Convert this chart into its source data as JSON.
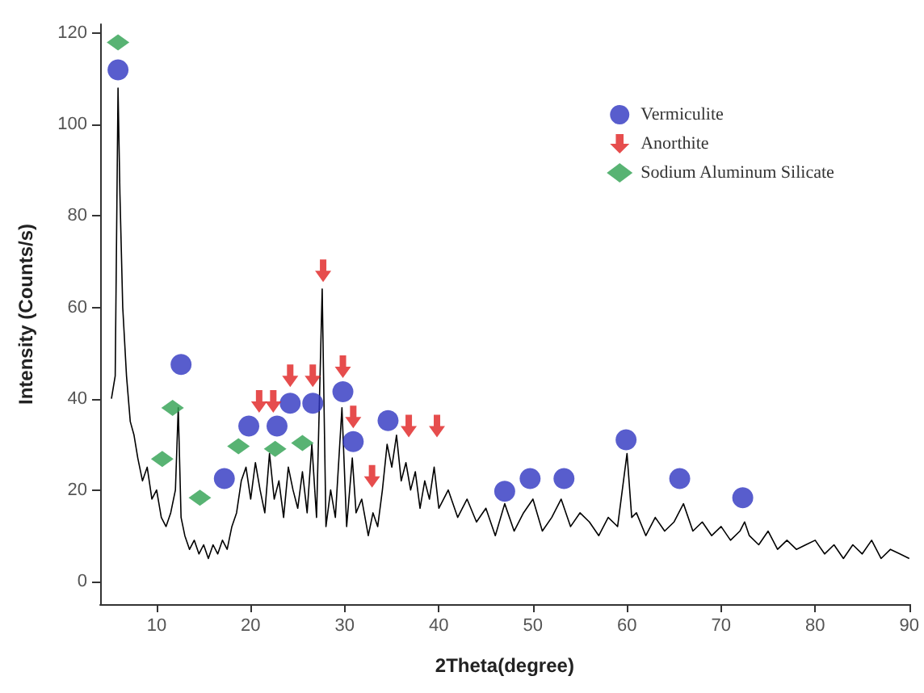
{
  "chart_data": {
    "type": "line",
    "xlabel": "2Theta(degree)",
    "ylabel": "Intensity (Counts/s)",
    "xlim": [
      4,
      90
    ],
    "xticks": [
      10,
      20,
      30,
      40,
      50,
      60,
      70,
      80,
      90
    ],
    "ylim": [
      -5,
      122
    ],
    "yticks": [
      0,
      20,
      40,
      60,
      80,
      100,
      120
    ],
    "grid": false,
    "legend": "top right",
    "series": [
      {
        "color": "#000000",
        "marker": "none",
        "line_style": "solid",
        "x": [
          5.2,
          5.6,
          5.9,
          6.1,
          6.4,
          6.8,
          7.2,
          7.6,
          8.0,
          8.5,
          9.0,
          9.5,
          10.0,
          10.5,
          11.0,
          11.5,
          12.0,
          12.3,
          12.6,
          13.0,
          13.5,
          14.0,
          14.5,
          15.0,
          15.5,
          16.0,
          16.5,
          17.0,
          17.5,
          18.0,
          18.5,
          19.0,
          19.5,
          20.0,
          20.5,
          21.0,
          21.5,
          22.0,
          22.5,
          23.0,
          23.5,
          24.0,
          24.5,
          25.0,
          25.5,
          26.0,
          26.5,
          27.0,
          27.6,
          28.0,
          28.5,
          29.0,
          29.7,
          30.2,
          30.8,
          31.2,
          31.8,
          32.5,
          33.0,
          33.5,
          34.0,
          34.5,
          35.0,
          35.5,
          36.0,
          36.5,
          37.0,
          37.5,
          38.0,
          38.5,
          39.0,
          39.5,
          40.0,
          41.0,
          42.0,
          43.0,
          44.0,
          45.0,
          46.0,
          47.0,
          48.0,
          49.0,
          50.0,
          51.0,
          52.0,
          53.0,
          54.0,
          55.0,
          56.0,
          57.0,
          58.0,
          59.0,
          60.0,
          60.5,
          61.0,
          62.0,
          63.0,
          64.0,
          65.0,
          66.0,
          67.0,
          68.0,
          69.0,
          70.0,
          71.0,
          72.0,
          72.5,
          73.0,
          74.0,
          75.0,
          76.0,
          77.0,
          78.0,
          79.0,
          80.0,
          81.0,
          82.0,
          83.0,
          84.0,
          85.0,
          86.0,
          87.0,
          88.0,
          89.0,
          90.0
        ],
        "values": [
          40,
          45,
          108,
          85,
          60,
          45,
          35,
          32,
          27,
          22,
          25,
          18,
          20,
          14,
          12,
          15,
          20,
          38,
          14,
          10,
          7,
          9,
          6,
          8,
          5,
          8,
          6,
          9,
          7,
          12,
          15,
          22,
          25,
          18,
          26,
          20,
          15,
          28,
          18,
          22,
          14,
          25,
          20,
          16,
          24,
          15,
          30,
          14,
          64,
          12,
          20,
          14,
          38,
          12,
          27,
          15,
          18,
          10,
          15,
          12,
          20,
          30,
          25,
          32,
          22,
          26,
          20,
          24,
          16,
          22,
          18,
          25,
          16,
          20,
          14,
          18,
          13,
          16,
          10,
          17,
          11,
          15,
          18,
          11,
          14,
          18,
          12,
          15,
          13,
          10,
          14,
          12,
          28,
          14,
          15,
          10,
          14,
          11,
          13,
          17,
          11,
          13,
          10,
          12,
          9,
          11,
          13,
          10,
          8,
          11,
          7,
          9,
          7,
          8,
          9,
          6,
          8,
          5,
          8,
          6,
          9,
          5,
          7,
          6,
          5
        ]
      },
      {
        "type": "scatter",
        "name": "Vermiculite",
        "color": "#2e35c0",
        "marker": "circle",
        "x": [
          5.9,
          12.6,
          17.2,
          19.8,
          22.8,
          24.2,
          26.6,
          29.8,
          30.9,
          34.6,
          47.0,
          49.7,
          53.3,
          59.9,
          65.6,
          72.3
        ],
        "values": [
          112,
          47.5,
          22.5,
          34,
          34,
          39,
          39,
          41.5,
          30.6,
          35.2,
          19.7,
          22.5,
          22.5,
          31,
          22.5,
          18.3
        ]
      },
      {
        "type": "scatter",
        "name": "Anorthite",
        "color": "#e02020",
        "marker": "triangle",
        "x": [
          27.7,
          20.9,
          22.4,
          24.2,
          26.6,
          29.8,
          30.9,
          32.9,
          36.8,
          39.8
        ],
        "values": [
          68,
          39.4,
          39.4,
          45,
          45,
          47,
          36,
          23,
          34,
          34
        ]
      },
      {
        "type": "scatter",
        "name": "Sodium Aluminum Silicate",
        "color": "#2ea050",
        "marker": "diamond",
        "x": [
          5.9,
          10.6,
          11.7,
          14.6,
          18.7,
          22.6,
          25.5
        ],
        "values": [
          118,
          26.8,
          38,
          18.3,
          29.6,
          29,
          30.3
        ]
      }
    ]
  }
}
